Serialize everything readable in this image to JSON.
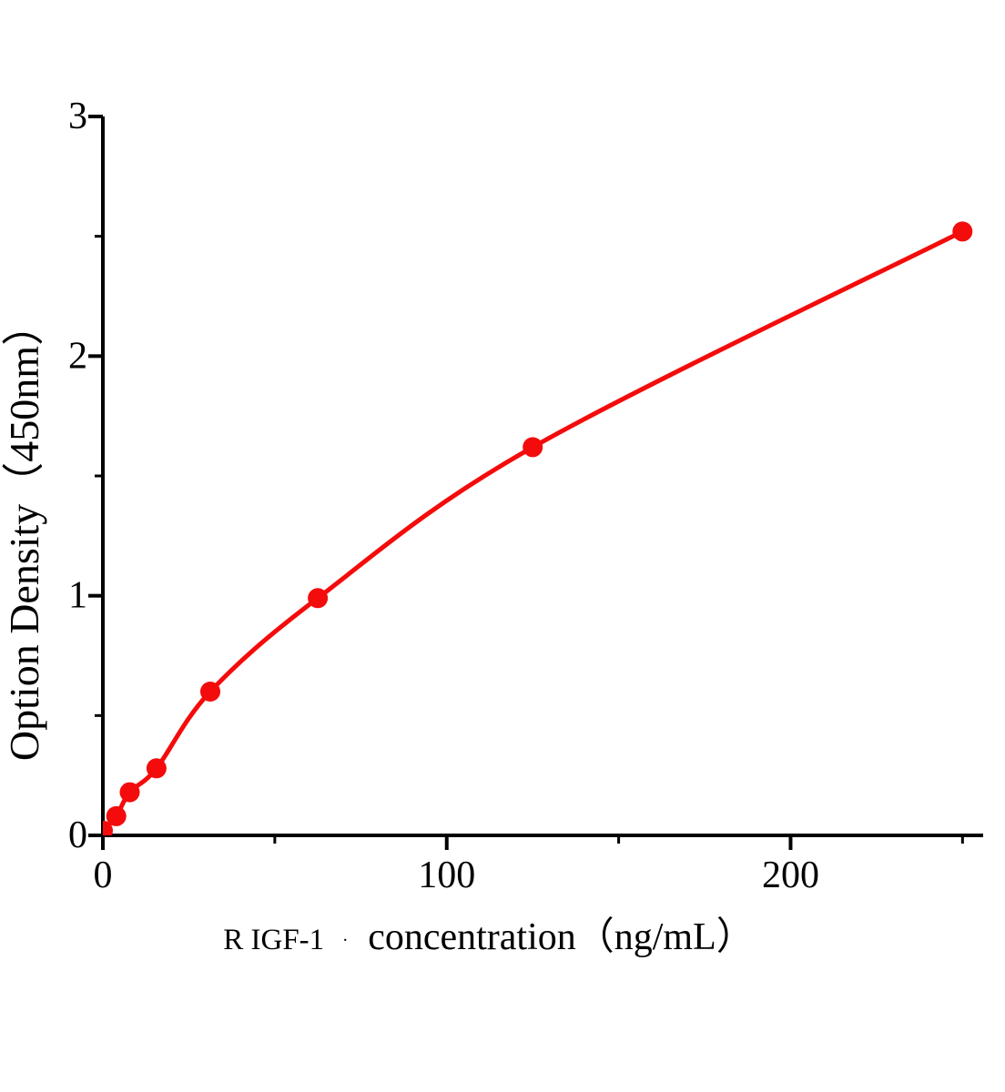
{
  "chart_data": {
    "type": "line",
    "title": "",
    "xlabel": {
      "prefix": "R IGF-1",
      "separator": ".",
      "main": "concentration（ng/mL）"
    },
    "ylabel": "Option Density（450nm）",
    "xlim": [
      0,
      256
    ],
    "ylim": [
      0,
      3
    ],
    "x_major_ticks": [
      0,
      100,
      200
    ],
    "x_tick_labels": [
      "0",
      "100",
      "200"
    ],
    "x_minor_ticks": [
      50,
      150,
      250
    ],
    "y_major_ticks": [
      0,
      1,
      2,
      3
    ],
    "y_tick_labels": [
      "0",
      "1",
      "2",
      "3"
    ],
    "y_minor_ticks": [
      0.5,
      1.5,
      2.5
    ],
    "grid": false,
    "legend": false,
    "marker": "filled-circle",
    "colors": {
      "curve": "#f40b0b",
      "axis": "#000000",
      "text": "#000000"
    },
    "series": [
      {
        "name": "Option Density（450nm）",
        "x": [
          0,
          3.9,
          7.8,
          15.6,
          31.25,
          62.5,
          125,
          250
        ],
        "values": [
          0.02,
          0.08,
          0.18,
          0.28,
          0.6,
          0.99,
          1.62,
          2.52
        ]
      }
    ]
  }
}
